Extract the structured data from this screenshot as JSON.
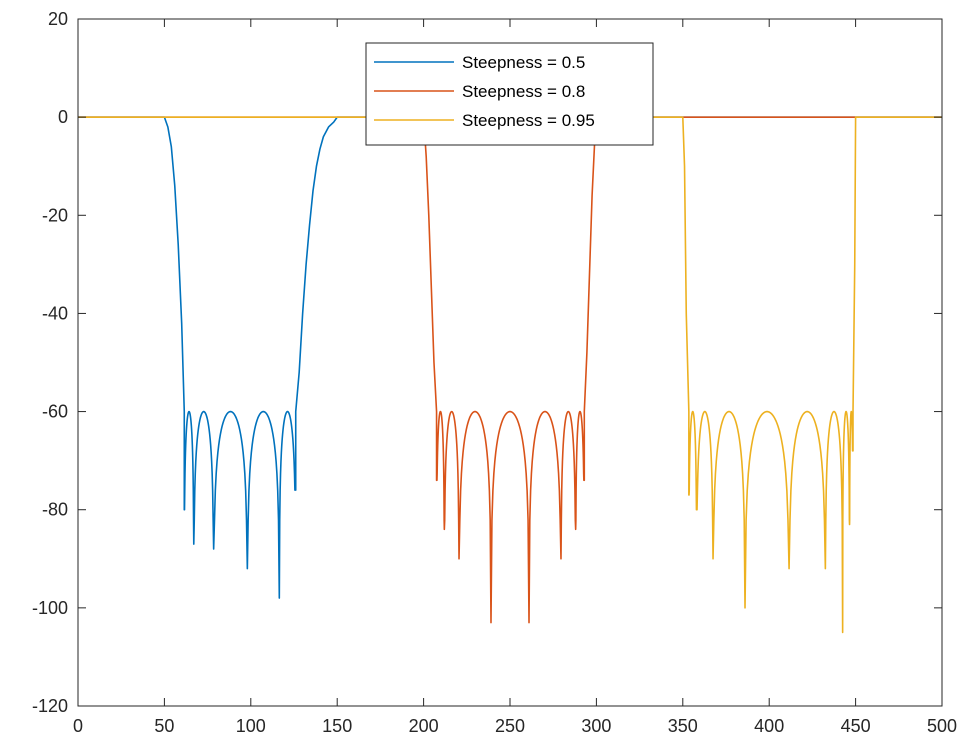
{
  "chart_data": {
    "type": "line",
    "title": "",
    "xlabel": "",
    "ylabel": "",
    "xlim": [
      0,
      500
    ],
    "ylim": [
      -120,
      20
    ],
    "xticks": [
      0,
      50,
      100,
      150,
      200,
      250,
      300,
      350,
      400,
      450,
      500
    ],
    "yticks": [
      20,
      0,
      -20,
      -40,
      -60,
      -80,
      -100,
      -120
    ],
    "grid": false,
    "legend_position": "top-center",
    "series": [
      {
        "name": "Steepness = 0.5",
        "color": "#0072BD",
        "stopband": [
          50,
          150
        ],
        "notches": [
          61.5,
          67,
          78.5,
          98,
          116.5,
          126
        ],
        "notch_depths": [
          -80,
          -87,
          -88,
          -92,
          -98,
          -76
        ],
        "points": [
          [
            0,
            0
          ],
          [
            50,
            0
          ],
          [
            52,
            -2
          ],
          [
            54,
            -6
          ],
          [
            56,
            -14
          ],
          [
            58,
            -26
          ],
          [
            60,
            -42
          ],
          [
            61.5,
            -60
          ],
          [
            126,
            -60
          ],
          [
            128,
            -52
          ],
          [
            130,
            -40
          ],
          [
            132,
            -30
          ],
          [
            134,
            -22
          ],
          [
            136,
            -15
          ],
          [
            138,
            -10
          ],
          [
            140,
            -6.5
          ],
          [
            142,
            -4
          ],
          [
            145,
            -2
          ],
          [
            148,
            -1
          ],
          [
            150,
            0
          ],
          [
            500,
            0
          ]
        ]
      },
      {
        "name": "Steepness = 0.8",
        "color": "#D95319",
        "stopband": [
          200,
          300
        ],
        "notches": [
          207.5,
          212,
          220.5,
          239,
          261,
          279.5,
          288,
          293
        ],
        "notch_depths": [
          -74,
          -84,
          -90,
          -103,
          -103,
          -90,
          -84,
          -74
        ],
        "points": [
          [
            0,
            0
          ],
          [
            200,
            0
          ],
          [
            201.5,
            -8
          ],
          [
            203,
            -20
          ],
          [
            204.5,
            -35
          ],
          [
            206,
            -50
          ],
          [
            207.5,
            -60
          ],
          [
            293,
            -60
          ],
          [
            294.5,
            -48
          ],
          [
            296,
            -32
          ],
          [
            297.5,
            -16
          ],
          [
            299,
            -5
          ],
          [
            300,
            0
          ],
          [
            500,
            0
          ]
        ]
      },
      {
        "name": "Steepness = 0.95",
        "color": "#EDB120",
        "stopband": [
          350,
          450
        ],
        "notches": [
          353.5,
          358,
          367.5,
          386,
          411.5,
          432.5,
          442.5,
          446.5,
          448.5
        ],
        "notch_depths": [
          -77,
          -80,
          -90,
          -100,
          -92,
          -92,
          -105,
          -83,
          -68
        ],
        "points": [
          [
            0,
            0
          ],
          [
            350,
            0
          ],
          [
            351,
            -10
          ],
          [
            352,
            -40
          ],
          [
            353.5,
            -60
          ],
          [
            448.5,
            -60
          ],
          [
            449.5,
            -30
          ],
          [
            450,
            0
          ],
          [
            500,
            0
          ]
        ]
      }
    ]
  }
}
